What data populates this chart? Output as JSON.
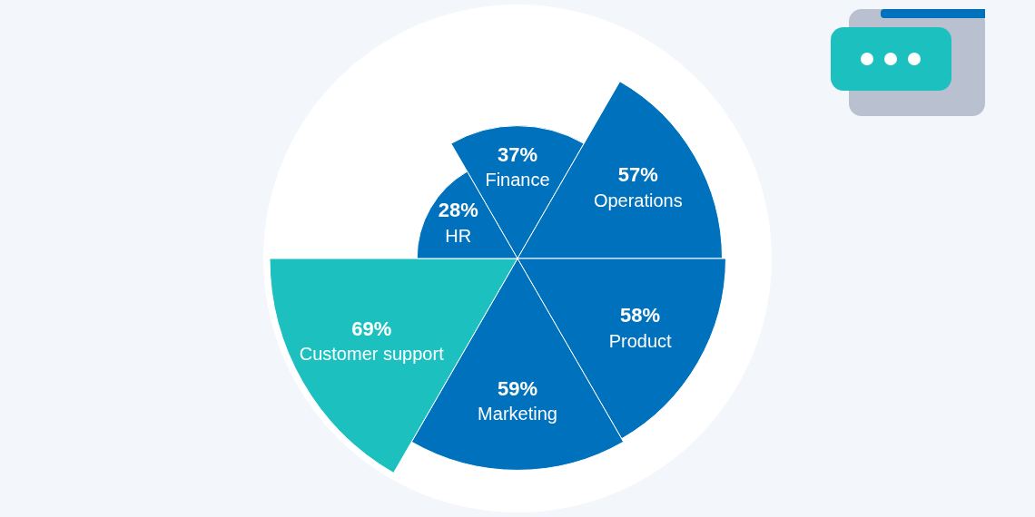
{
  "chart_data": {
    "type": "other",
    "categories": [
      "Finance",
      "Operations",
      "Product",
      "Marketing",
      "Customer support",
      "HR"
    ],
    "values": [
      37,
      57,
      58,
      59,
      69,
      28
    ],
    "value_labels": [
      "37%",
      "57%",
      "58%",
      "59%",
      "69%",
      "28%"
    ],
    "colors": [
      "#0071bc",
      "#0071bc",
      "#0071bc",
      "#0071bc",
      "#1cc1bf",
      "#0071bc"
    ]
  }
}
